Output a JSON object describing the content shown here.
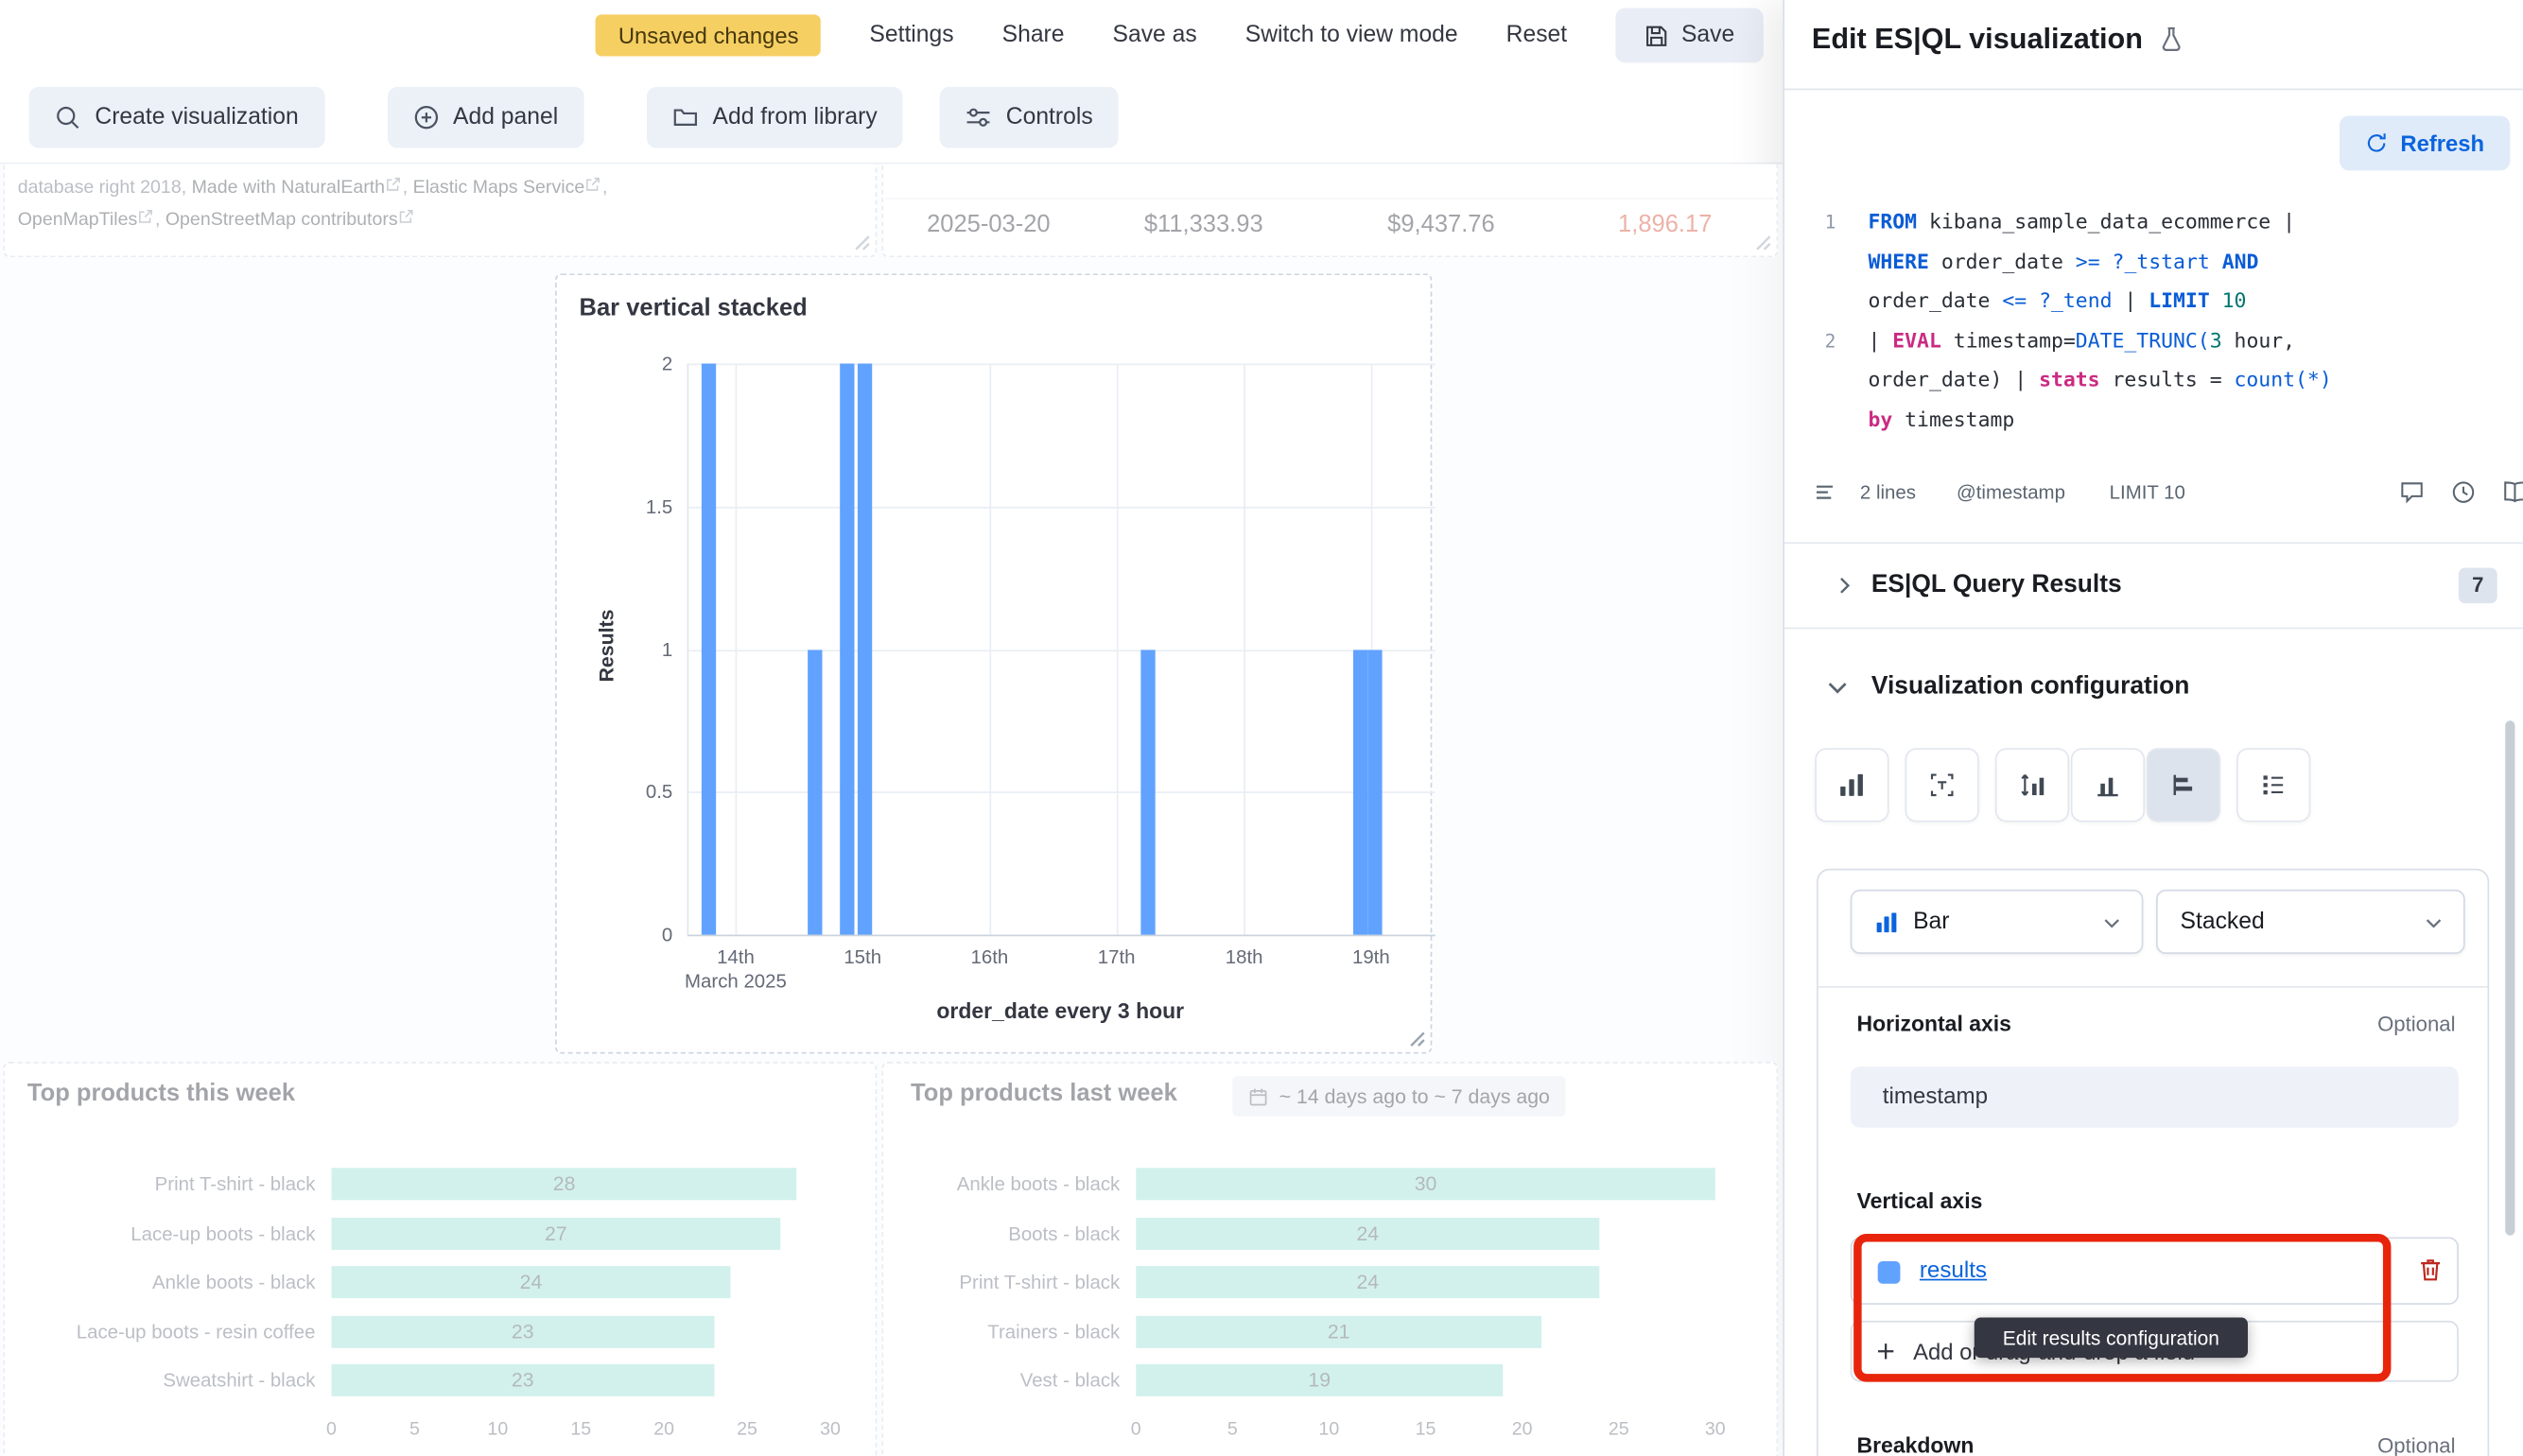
{
  "topbar": {
    "unsaved_badge": "Unsaved changes",
    "settings": "Settings",
    "share": "Share",
    "save_as": "Save as",
    "switch_view": "Switch to view mode",
    "reset": "Reset",
    "save": "Save"
  },
  "toolbar": {
    "create_visualization": "Create visualization",
    "add_panel": "Add panel",
    "add_from_library": "Add from library",
    "controls": "Controls"
  },
  "map_attribution": {
    "prefix": "database right 2018, ",
    "link1": "Made with NaturalEarth",
    "sep1": ", ",
    "link2": "Elastic Maps Service",
    "sep2": ",",
    "link3": "OpenMapTiles",
    "sep3": ", ",
    "link4": "OpenStreetMap contributors"
  },
  "table_row": {
    "date": "2025-03-20",
    "taxful": "$11,333.93",
    "taxless": "$9,437.76",
    "highlight": "1,896.17"
  },
  "chart_data": [
    {
      "type": "bar",
      "title": "Bar vertical stacked",
      "ylabel": "Results",
      "xlabel": "order_date every 3 hour",
      "ylim": [
        0,
        2
      ],
      "y_ticks": [
        0,
        0.5,
        1,
        1.5,
        2
      ],
      "x_ticks": [
        "14th",
        "15th",
        "16th",
        "17th",
        "18th",
        "19th"
      ],
      "x_tick_secondary": "March 2025",
      "x_tick_pos": [
        0.063,
        0.233,
        0.403,
        0.573,
        0.744,
        0.914
      ],
      "series_name": "results",
      "bar_color": "#61A2FF",
      "bars": [
        {
          "pos": 0.026,
          "value": 2
        },
        {
          "pos": 0.17,
          "value": 1
        },
        {
          "pos": 0.213,
          "value": 2
        },
        {
          "pos": 0.235,
          "value": 2
        },
        {
          "pos": 0.616,
          "value": 1
        },
        {
          "pos": 0.899,
          "value": 1
        },
        {
          "pos": 0.92,
          "value": 1
        }
      ]
    },
    {
      "type": "bar_horizontal",
      "title": "Top products this week",
      "categories": [
        "Print T-shirt - black",
        "Lace-up boots - black",
        "Ankle boots - black",
        "Lace-up boots - resin coffee",
        "Sweatshirt - black"
      ],
      "values": [
        28,
        27,
        24,
        23,
        23
      ],
      "xlim": [
        0,
        30
      ],
      "x_ticks": [
        0,
        5,
        10,
        15,
        20,
        25,
        30
      ],
      "bar_color": "#9CDFD5"
    },
    {
      "type": "bar_horizontal",
      "title": "Top products last week",
      "time_badge": "~ 14 days ago to ~ 7 days ago",
      "categories": [
        "Ankle boots - black",
        "Boots - black",
        "Print T-shirt - black",
        "Trainers - black",
        "Vest - black"
      ],
      "values": [
        30,
        24,
        24,
        21,
        19
      ],
      "xlim": [
        0,
        30
      ],
      "x_ticks": [
        0,
        5,
        10,
        15,
        20,
        25,
        30
      ],
      "bar_color": "#9CDFD5"
    }
  ],
  "flyout": {
    "title": "Edit ES|QL visualization",
    "refresh": "Refresh",
    "editor": {
      "lines": [
        {
          "num": "1",
          "tokens": [
            {
              "t": "FROM",
              "c": "kw"
            },
            {
              "t": " kibana_sample_data_ecommerce |",
              "c": "txt"
            }
          ]
        },
        {
          "num": "",
          "tokens": [
            {
              "t": "WHERE",
              "c": "kw"
            },
            {
              "t": " order_date ",
              "c": "txt"
            },
            {
              "t": ">=",
              "c": "op"
            },
            {
              "t": " ",
              "c": "txt"
            },
            {
              "t": "?_tstart",
              "c": "op"
            },
            {
              "t": " ",
              "c": "txt"
            },
            {
              "t": "AND",
              "c": "kw"
            }
          ]
        },
        {
          "num": "",
          "tokens": [
            {
              "t": "order_date ",
              "c": "txt"
            },
            {
              "t": "<=",
              "c": "op"
            },
            {
              "t": " ",
              "c": "txt"
            },
            {
              "t": "?_tend",
              "c": "op"
            },
            {
              "t": " | ",
              "c": "txt"
            },
            {
              "t": "LIMIT",
              "c": "kw"
            },
            {
              "t": " 10",
              "c": "num"
            }
          ]
        },
        {
          "num": "2",
          "tokens": [
            {
              "t": "| ",
              "c": "txt"
            },
            {
              "t": "EVAL",
              "c": "sk"
            },
            {
              "t": " timestamp=",
              "c": "txt"
            },
            {
              "t": "DATE_TRUNC(",
              "c": "fn"
            },
            {
              "t": "3",
              "c": "num"
            },
            {
              "t": " hour,",
              "c": "txt"
            }
          ]
        },
        {
          "num": "",
          "tokens": [
            {
              "t": "order_date) | ",
              "c": "txt"
            },
            {
              "t": "stats",
              "c": "sk"
            },
            {
              "t": " results = ",
              "c": "txt"
            },
            {
              "t": "count",
              "c": "fn"
            },
            {
              "t": "(*)",
              "c": "fn"
            }
          ]
        },
        {
          "num": "",
          "tokens": [
            {
              "t": "by",
              "c": "sk"
            },
            {
              "t": " timestamp",
              "c": "txt"
            }
          ]
        }
      ],
      "footer": {
        "lines_count": "2 lines",
        "timestamp": "@timestamp",
        "limit": "LIMIT 10"
      }
    },
    "query_results": {
      "title": "ES|QL Query Results",
      "count": "7"
    },
    "viz": {
      "title": "Visualization configuration",
      "chart_type": "Bar",
      "stack_mode": "Stacked",
      "horizontal_axis": "Horizontal axis",
      "optional": "Optional",
      "horizontal_value": "timestamp",
      "vertical_axis": "Vertical axis",
      "field": "results",
      "add_field": "Add or drag-and-drop a field",
      "tooltip": "Edit results configuration",
      "breakdown": "Breakdown",
      "breakdown_optional": "Optional"
    }
  }
}
